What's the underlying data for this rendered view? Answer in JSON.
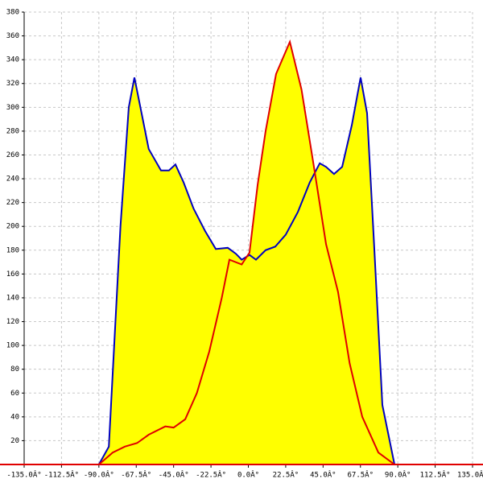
{
  "chart_data": {
    "type": "area",
    "xlim": [
      -135,
      135
    ],
    "ylim": [
      0,
      380
    ],
    "xticks": [
      {
        "value": -135,
        "label": "-135.0Â°"
      },
      {
        "value": -112.5,
        "label": "-112.5Â°"
      },
      {
        "value": -90,
        "label": "-90.0Â°"
      },
      {
        "value": -67.5,
        "label": "-67.5Â°"
      },
      {
        "value": -45,
        "label": "-45.0Â°"
      },
      {
        "value": -22.5,
        "label": "-22.5Â°"
      },
      {
        "value": 0,
        "label": "0.0Â°"
      },
      {
        "value": 22.5,
        "label": "22.5Â°"
      },
      {
        "value": 45,
        "label": "45.0Â°"
      },
      {
        "value": 67.5,
        "label": "67.5Â°"
      },
      {
        "value": 90,
        "label": "90.0Â°"
      },
      {
        "value": 112.5,
        "label": "112.5Â°"
      },
      {
        "value": 135,
        "label": "135.0Â°"
      }
    ],
    "yticks": [
      20,
      40,
      60,
      80,
      100,
      120,
      140,
      160,
      180,
      200,
      220,
      240,
      260,
      280,
      300,
      320,
      340,
      360,
      380
    ],
    "grid": true,
    "fill_color": "#ffff00",
    "series": [
      {
        "color": "#0000c0",
        "x": [
          -90,
          -84,
          -77,
          -72,
          -68.6,
          -65,
          -60,
          -52.6,
          -47.8,
          -43.9,
          -39,
          -33,
          -26,
          -19.6,
          -12.4,
          -7.5,
          -4,
          0.7,
          4.6,
          10.4,
          16.2,
          22.5,
          29.8,
          37,
          43,
          46.8,
          51.6,
          56.5,
          62.3,
          67.6,
          71.5,
          75.9,
          80.7,
          88,
          92
        ],
        "values": [
          0,
          15,
          200,
          300,
          325,
          300,
          265,
          247,
          247,
          252,
          237,
          215,
          196,
          181,
          182,
          177,
          172,
          176,
          172,
          180,
          183,
          193,
          212,
          237,
          253,
          250,
          244,
          250,
          285,
          325,
          295,
          180,
          50,
          0,
          0
        ]
      },
      {
        "color": "#e00000",
        "x": [
          -90,
          -81.7,
          -74.4,
          -67,
          -60,
          -50,
          -45,
          -38,
          -31,
          -23.5,
          -16,
          -11.4,
          -4,
          0.7,
          5.6,
          10.4,
          16.7,
          25,
          32,
          39.5,
          46.8,
          54,
          61,
          68.6,
          78.3,
          88
        ],
        "values": [
          0,
          10,
          15,
          18,
          25,
          32,
          31,
          38,
          60,
          95,
          140,
          172,
          168,
          178,
          235,
          280,
          328,
          355,
          315,
          250,
          185,
          145,
          85,
          40,
          10,
          0
        ]
      }
    ]
  }
}
